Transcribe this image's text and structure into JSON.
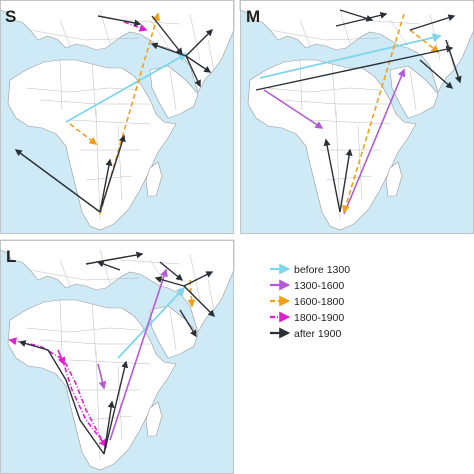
{
  "figure": {
    "panels": [
      {
        "label": "S"
      },
      {
        "label": "M"
      },
      {
        "label": "L"
      }
    ]
  },
  "legend": {
    "items": [
      {
        "label": "before 1300",
        "color": "#7fd6ec",
        "style": "solid"
      },
      {
        "label": "1300-1600",
        "color": "#b35ad6",
        "style": "solid"
      },
      {
        "label": "1600-1800",
        "color": "#f2a019",
        "style": "dashed"
      },
      {
        "label": "1800-1900",
        "color": "#e020d0",
        "style": "dash-dot"
      },
      {
        "label": "after 1900",
        "color": "#2b2f36",
        "style": "solid"
      }
    ]
  }
}
